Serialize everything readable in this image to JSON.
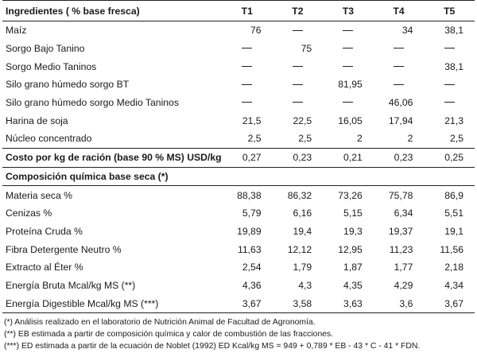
{
  "table": {
    "header": {
      "label": "Ingredientes ( % base fresca)",
      "treatments": [
        "T1",
        "T2",
        "T3",
        "T4",
        "T5"
      ]
    },
    "ingredients": [
      {
        "label": "Maíz",
        "values": [
          "76",
          "—",
          "—",
          "34",
          "38,1"
        ]
      },
      {
        "label": "Sorgo Bajo Tanino",
        "values": [
          "—",
          "75",
          "—",
          "—",
          "—"
        ]
      },
      {
        "label": "Sorgo Medio Taninos",
        "values": [
          "—",
          "—",
          "—",
          "—",
          "38,1"
        ]
      },
      {
        "label": "Silo grano húmedo sorgo BT",
        "values": [
          "—",
          "—",
          "81,95",
          "—",
          "—"
        ]
      },
      {
        "label": "Silo grano húmedo sorgo Medio Taninos",
        "values": [
          "—",
          "—",
          "—",
          "46,06",
          "—"
        ]
      },
      {
        "label": "Harina de soja",
        "values": [
          "21,5",
          "22,5",
          "16,05",
          "17,94",
          "21,3"
        ]
      },
      {
        "label": "Núcleo concentrado",
        "values": [
          "2,5",
          "2,5",
          "2",
          "2",
          "2,5"
        ]
      }
    ],
    "cost": {
      "label": "Costo  por kg de ración (base 90 % MS) USD/kg",
      "values": [
        "0,27",
        "0,23",
        "0,21",
        "0,23",
        "0,25"
      ]
    },
    "composition_title": "Composición química  base seca (*)",
    "composition": [
      {
        "label": "Materia seca %",
        "values": [
          "88,38",
          "86,32",
          "73,26",
          "75,78",
          "86,9"
        ]
      },
      {
        "label": "Cenizas %",
        "values": [
          "5,79",
          "6,16",
          "5,15",
          "6,34",
          "5,51"
        ]
      },
      {
        "label": "Proteína Cruda %",
        "values": [
          "19,89",
          "19,4",
          "19,3",
          "19,37",
          "19,1"
        ]
      },
      {
        "label": "Fibra Detergente Neutro %",
        "values": [
          "11,63",
          "12,12",
          "12,95",
          "11,23",
          "11,56"
        ]
      },
      {
        "label": "Extracto al Éter %",
        "values": [
          "2,54",
          "1,79",
          "1,87",
          "1,77",
          "2,18"
        ]
      },
      {
        "label": "Energía Bruta Mcal/kg MS (**)",
        "values": [
          "4,36",
          "4,3",
          "4,35",
          "4,29",
          "4,34"
        ]
      },
      {
        "label": "Energía Digestible Mcal/kg MS (***)",
        "values": [
          "3,67",
          "3,58",
          "3,63",
          "3,6",
          "3,67"
        ]
      }
    ]
  },
  "notes": [
    "(*) Análisis realizado en el laboratorio de Nutrición Animal de Facultad de Agronomía.",
    "(**) EB estimada a partir de composición química y calor de combustión de las fracciones.",
    "(***) ED estimada a partir de la ecuación de Noblet (1992) ED Kcal/kg MS = 949 + 0,789 * EB - 43 * C - 41 * FDN."
  ]
}
